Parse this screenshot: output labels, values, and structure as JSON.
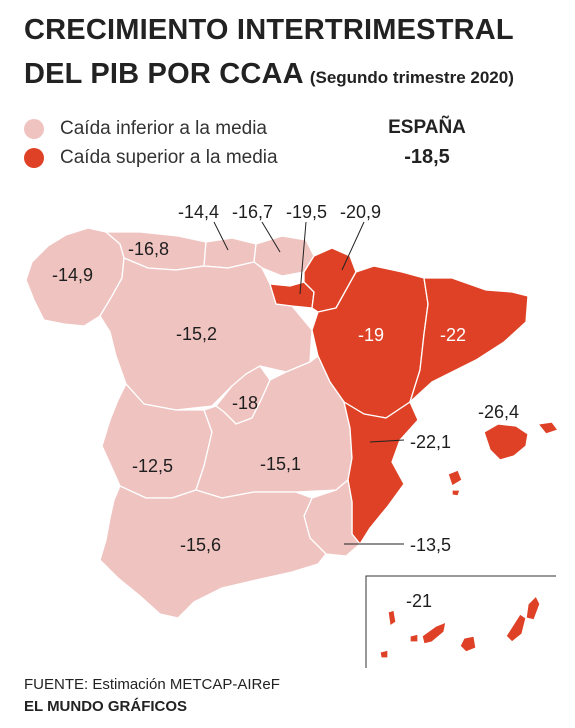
{
  "title_line1": "CRECIMIENTO INTERTRIMESTRAL",
  "title_line2": "DEL PIB POR CCAA",
  "subtitle": "(Segundo trimestre 2020)",
  "legend": {
    "lower": "Caída inferior a la media",
    "higher": "Caída superior a la media"
  },
  "colors": {
    "lower": "#efc3c0",
    "higher": "#de4126",
    "borders": "#ffffff",
    "label_text": "#1e1e1e"
  },
  "national": {
    "name": "ESPAÑA",
    "value": "-18,5"
  },
  "regions": {
    "galicia": {
      "value": "-14,9",
      "category": "lower"
    },
    "asturias": {
      "value": "-16,8",
      "category": "lower"
    },
    "cantabria": {
      "value": "-14,4",
      "category": "lower"
    },
    "pais_vasco": {
      "value": "-16,7",
      "category": "lower"
    },
    "la_rioja": {
      "value": "-19,5",
      "category": "higher"
    },
    "navarra": {
      "value": "-20,9",
      "category": "higher"
    },
    "castilla_y_leon": {
      "value": "-15,2",
      "category": "lower"
    },
    "aragon": {
      "value": "-19",
      "category": "higher"
    },
    "cataluna": {
      "value": "-22",
      "category": "higher"
    },
    "madrid": {
      "value": "-18",
      "category": "lower"
    },
    "extremadura": {
      "value": "-12,5",
      "category": "lower"
    },
    "castilla_la_mancha": {
      "value": "-15,1",
      "category": "lower"
    },
    "comunitat_valenciana": {
      "value": "-22,1",
      "category": "higher"
    },
    "baleares": {
      "value": "-26,4",
      "category": "higher"
    },
    "andalucia": {
      "value": "-15,6",
      "category": "lower"
    },
    "murcia": {
      "value": "-13,5",
      "category": "lower"
    },
    "canarias": {
      "value": "-21",
      "category": "higher"
    }
  },
  "source": "FUENTE: Estimación METCAP-AIReF",
  "credit": "EL MUNDO GRÁFICOS"
}
